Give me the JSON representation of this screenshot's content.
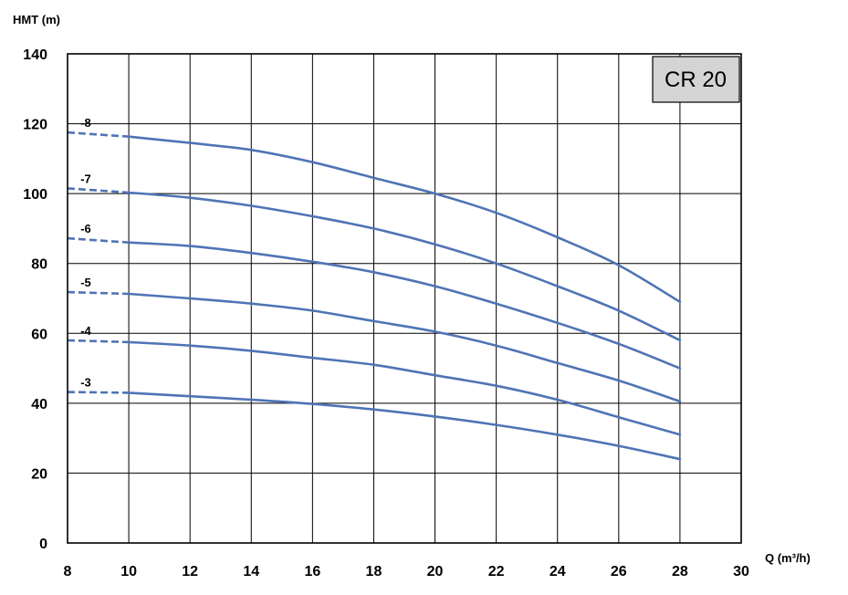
{
  "chart_data": {
    "type": "line",
    "title": "",
    "model_label": "CR 20",
    "ylabel": "HMT (m)",
    "xlabel": "Q (m³/h)",
    "xlim": [
      8,
      30
    ],
    "ylim": [
      0,
      140
    ],
    "x_ticks": [
      8,
      10,
      12,
      14,
      16,
      18,
      20,
      22,
      24,
      26,
      28,
      30
    ],
    "y_ticks": [
      0,
      20,
      40,
      60,
      80,
      100,
      120,
      140
    ],
    "grid": true,
    "line_color": "#4f74b5",
    "dashed_segment_x": [
      8,
      10
    ],
    "series": [
      {
        "name": "-8",
        "x": [
          8,
          10,
          12,
          14,
          16,
          18,
          20,
          22,
          24,
          26,
          28
        ],
        "values": [
          117.5,
          116.3,
          114.5,
          112.5,
          109,
          104.5,
          100,
          94.5,
          87.5,
          79.5,
          69
        ]
      },
      {
        "name": "-7",
        "x": [
          8,
          10,
          12,
          14,
          16,
          18,
          20,
          22,
          24,
          26,
          28
        ],
        "values": [
          101.5,
          100.3,
          98.8,
          96.5,
          93.5,
          90,
          85.5,
          80,
          73.5,
          66.5,
          58
        ]
      },
      {
        "name": "-6",
        "x": [
          8,
          10,
          12,
          14,
          16,
          18,
          20,
          22,
          24,
          26,
          28
        ],
        "values": [
          87.2,
          86,
          85,
          83,
          80.5,
          77.5,
          73.5,
          68.5,
          63,
          57,
          50
        ]
      },
      {
        "name": "-5",
        "x": [
          8,
          10,
          12,
          14,
          16,
          18,
          20,
          22,
          24,
          26,
          28
        ],
        "values": [
          71.8,
          71.3,
          70,
          68.5,
          66.5,
          63.5,
          60.5,
          56.5,
          51.5,
          46.5,
          40.5
        ]
      },
      {
        "name": "-4",
        "x": [
          8,
          10,
          12,
          14,
          16,
          18,
          20,
          22,
          24,
          26,
          28
        ],
        "values": [
          58,
          57.5,
          56.5,
          55,
          53,
          51,
          48,
          45,
          41,
          36,
          31
        ]
      },
      {
        "name": "-3",
        "x": [
          8,
          10,
          12,
          14,
          16,
          18,
          20,
          22,
          24,
          26,
          28
        ],
        "values": [
          43.2,
          43,
          42,
          41,
          39.8,
          38.2,
          36.2,
          33.8,
          31,
          27.8,
          24
        ]
      }
    ]
  }
}
